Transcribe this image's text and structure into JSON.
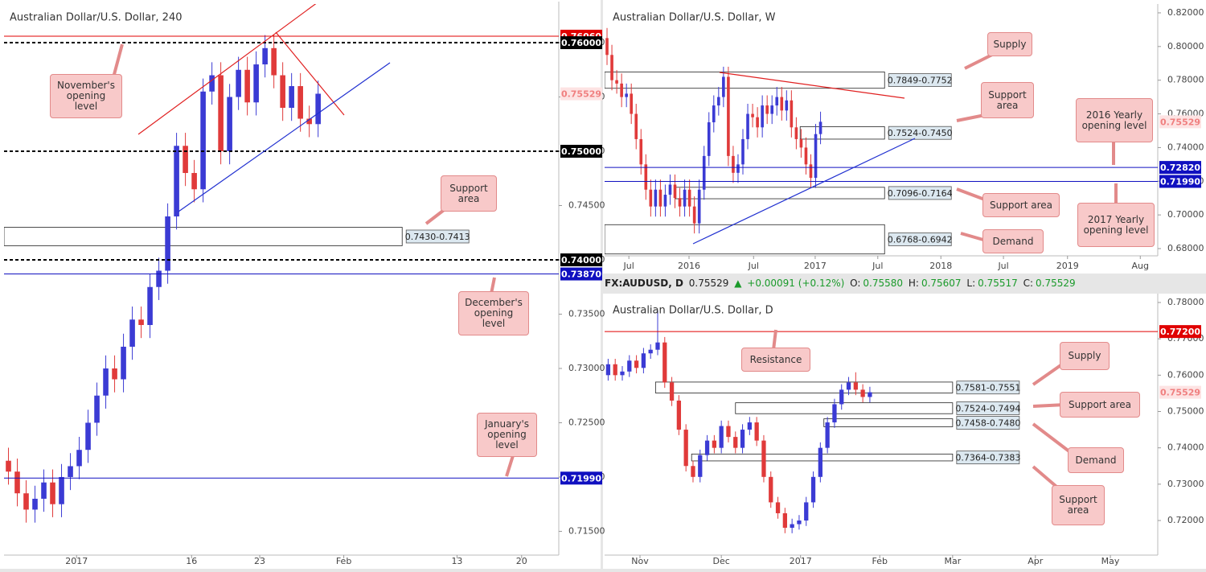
{
  "chart_data": [
    {
      "type": "candlestick",
      "title": "Australian Dollar/U.S. Dollar, 240",
      "up_color": "#3b3bd4",
      "down_color": "#e03a3a",
      "xlim": [
        0,
        62.7
      ],
      "ylim": [
        0.71281,
        0.76356
      ],
      "xticks": [
        {
          "value": 8.2,
          "label": "2017"
        },
        {
          "value": 21.2,
          "label": "16"
        },
        {
          "value": 28.9,
          "label": "23"
        },
        {
          "value": 38.4,
          "label": "Feb"
        },
        {
          "value": 51.2,
          "label": "13"
        },
        {
          "value": 58.5,
          "label": "20"
        }
      ],
      "yticks": [
        {
          "value": 0.715,
          "label": "0.71500"
        },
        {
          "value": 0.72,
          "label": "0.72000"
        },
        {
          "value": 0.725,
          "label": "0.72500"
        },
        {
          "value": 0.73,
          "label": "0.73000"
        },
        {
          "value": 0.735,
          "label": "0.73500"
        },
        {
          "value": 0.74,
          "label": "0.74000"
        },
        {
          "value": 0.745,
          "label": "0.74500"
        },
        {
          "value": 0.75,
          "label": "0.75000"
        },
        {
          "value": 0.755,
          "label": "0.75500"
        },
        {
          "value": 0.76,
          "label": "0.76000"
        }
      ],
      "candles": {
        "open": [
          0.7215,
          0.7205,
          0.7185,
          0.717,
          0.718,
          0.7195,
          0.7175,
          0.72,
          0.721,
          0.7225,
          0.725,
          0.7275,
          0.73,
          0.729,
          0.732,
          0.7345,
          0.734,
          0.7375,
          0.739,
          0.744,
          0.7505,
          0.748,
          0.7465,
          0.7555,
          0.757,
          0.75,
          0.755,
          0.7575,
          0.7545,
          0.758,
          0.7595,
          0.757,
          0.754,
          0.756,
          0.753,
          0.7525
        ],
        "high": [
          0.7227,
          0.7217,
          0.7197,
          0.7192,
          0.7207,
          0.7207,
          0.7212,
          0.7222,
          0.7237,
          0.7262,
          0.7287,
          0.7312,
          0.7312,
          0.7332,
          0.7357,
          0.7357,
          0.7387,
          0.7402,
          0.7452,
          0.7517,
          0.7517,
          0.7492,
          0.7567,
          0.7582,
          0.7582,
          0.7562,
          0.7587,
          0.7587,
          0.7592,
          0.7607,
          0.7607,
          0.7582,
          0.7572,
          0.7572,
          0.7542,
          0.7565
        ],
        "low": [
          0.7193,
          0.7173,
          0.7158,
          0.7158,
          0.7168,
          0.7163,
          0.7163,
          0.7188,
          0.7198,
          0.7213,
          0.7238,
          0.7263,
          0.7278,
          0.7278,
          0.7308,
          0.7328,
          0.7328,
          0.7363,
          0.7378,
          0.7428,
          0.7468,
          0.7453,
          0.7453,
          0.7543,
          0.7488,
          0.7488,
          0.7538,
          0.7533,
          0.7533,
          0.7568,
          0.7558,
          0.7528,
          0.7528,
          0.7518,
          0.7513,
          0.7513
        ],
        "close": [
          0.7205,
          0.7185,
          0.717,
          0.718,
          0.7195,
          0.7175,
          0.72,
          0.721,
          0.7225,
          0.725,
          0.7275,
          0.73,
          0.729,
          0.732,
          0.7345,
          0.734,
          0.7375,
          0.739,
          0.744,
          0.7505,
          0.748,
          0.7465,
          0.7555,
          0.757,
          0.75,
          0.755,
          0.7575,
          0.7545,
          0.758,
          0.7595,
          0.757,
          0.754,
          0.756,
          0.753,
          0.7525,
          0.7553
        ]
      },
      "levels": [
        {
          "value": 0.7606,
          "label": "0.76060",
          "color": "#e00000",
          "line": "solid"
        },
        {
          "value": 0.76,
          "label": "0.76000",
          "color": "#000000",
          "line": "dashed"
        },
        {
          "value": 0.75529,
          "label": "0.75529",
          "color": "#f08080",
          "line": "none"
        },
        {
          "value": 0.75,
          "label": "0.75000",
          "color": "#000000",
          "line": "dashed"
        },
        {
          "value": 0.74,
          "label": "0.74000",
          "color": "#000000",
          "line": "dashed"
        },
        {
          "value": 0.7387,
          "label": "0.73870",
          "color": "#1010c0",
          "line": "solid"
        },
        {
          "value": 0.7199,
          "label": "0.71990",
          "color": "#1010c0",
          "line": "solid"
        }
      ],
      "zones": [
        {
          "label": "0.7430-0.7413",
          "values": [
            0.743,
            0.7413
          ],
          "from": 0,
          "to": 45
        }
      ],
      "callouts": [
        "November's opening level",
        "Support area",
        "December's opening level",
        "January's opening level"
      ]
    },
    {
      "type": "candlestick",
      "title": "Australian Dollar/U.S. Dollar, W",
      "up_color": "#3b3bd4",
      "down_color": "#e03a3a",
      "xlim": [
        0,
        114
      ],
      "ylim": [
        0.6757,
        0.8238
      ],
      "xticks": [
        {
          "value": 5.0,
          "label": "Jul"
        },
        {
          "value": 17.4,
          "label": "2016"
        },
        {
          "value": 30.7,
          "label": "Jul"
        },
        {
          "value": 43.4,
          "label": "2017"
        },
        {
          "value": 56.3,
          "label": "Jul"
        },
        {
          "value": 69.3,
          "label": "2018"
        },
        {
          "value": 82.2,
          "label": "Jul"
        },
        {
          "value": 95.4,
          "label": "2019"
        },
        {
          "value": 110.4,
          "label": "Aug"
        }
      ],
      "yticks": [
        {
          "value": 0.68,
          "label": "0.68000"
        },
        {
          "value": 0.7,
          "label": "0.70000"
        },
        {
          "value": 0.72,
          "label": "0.72000"
        },
        {
          "value": 0.74,
          "label": "0.74000"
        },
        {
          "value": 0.76,
          "label": "0.76000"
        },
        {
          "value": 0.78,
          "label": "0.78000"
        },
        {
          "value": 0.8,
          "label": "0.80000"
        },
        {
          "value": 0.82,
          "label": "0.82000"
        }
      ],
      "candles": {
        "open": [
          0.805,
          0.795,
          0.78,
          0.778,
          0.77,
          0.772,
          0.76,
          0.745,
          0.73,
          0.715,
          0.705,
          0.715,
          0.705,
          0.712,
          0.718,
          0.71,
          0.705,
          0.715,
          0.705,
          0.695,
          0.715,
          0.735,
          0.755,
          0.765,
          0.77,
          0.782,
          0.735,
          0.725,
          0.73,
          0.745,
          0.76,
          0.758,
          0.752,
          0.765,
          0.76,
          0.765,
          0.77,
          0.762,
          0.768,
          0.752,
          0.745,
          0.74,
          0.73,
          0.722,
          0.748
        ],
        "high": [
          0.811,
          0.801,
          0.786,
          0.784,
          0.778,
          0.778,
          0.766,
          0.751,
          0.736,
          0.721,
          0.721,
          0.721,
          0.718,
          0.724,
          0.724,
          0.716,
          0.721,
          0.721,
          0.711,
          0.721,
          0.741,
          0.761,
          0.771,
          0.776,
          0.788,
          0.788,
          0.741,
          0.736,
          0.751,
          0.766,
          0.766,
          0.764,
          0.771,
          0.771,
          0.771,
          0.776,
          0.776,
          0.774,
          0.774,
          0.758,
          0.751,
          0.746,
          0.736,
          0.754,
          0.7613
        ],
        "low": [
          0.789,
          0.774,
          0.772,
          0.764,
          0.764,
          0.754,
          0.739,
          0.724,
          0.709,
          0.699,
          0.699,
          0.699,
          0.699,
          0.706,
          0.704,
          0.699,
          0.699,
          0.699,
          0.689,
          0.689,
          0.709,
          0.729,
          0.749,
          0.759,
          0.764,
          0.729,
          0.719,
          0.719,
          0.724,
          0.739,
          0.752,
          0.746,
          0.746,
          0.754,
          0.754,
          0.759,
          0.756,
          0.756,
          0.746,
          0.739,
          0.734,
          0.724,
          0.716,
          0.716,
          0.742
        ],
        "close": [
          0.795,
          0.78,
          0.778,
          0.77,
          0.772,
          0.76,
          0.745,
          0.73,
          0.715,
          0.705,
          0.715,
          0.705,
          0.712,
          0.718,
          0.71,
          0.705,
          0.715,
          0.705,
          0.695,
          0.715,
          0.735,
          0.755,
          0.765,
          0.77,
          0.782,
          0.735,
          0.725,
          0.73,
          0.745,
          0.76,
          0.758,
          0.752,
          0.765,
          0.76,
          0.765,
          0.77,
          0.762,
          0.768,
          0.752,
          0.745,
          0.74,
          0.73,
          0.722,
          0.748,
          0.7553
        ]
      },
      "levels": [
        {
          "value": 0.75529,
          "label": "0.75529",
          "color": "#f08080",
          "line": "none"
        },
        {
          "value": 0.7282,
          "label": "0.72820",
          "color": "#1010c0",
          "line": "solid"
        },
        {
          "value": 0.7199,
          "label": "0.71990",
          "color": "#1010c0",
          "line": "solid"
        }
      ],
      "zones": [
        {
          "label": "0.7849-0.7752",
          "values": [
            0.7849,
            0.7752
          ],
          "from": 0,
          "to": 57.7
        },
        {
          "label": "0.7524-0.7450",
          "values": [
            0.7524,
            0.745
          ],
          "from": 40.3,
          "to": 57.7
        },
        {
          "label": "0.7096-0.7164",
          "values": [
            0.7096,
            0.7164
          ],
          "from": 14.6,
          "to": 57.7
        },
        {
          "label": "0.6768-0.6942",
          "values": [
            0.6768,
            0.6942
          ],
          "from": 0,
          "to": 57.7
        }
      ],
      "callouts": [
        "Supply",
        "Support area",
        "Support area",
        "Demand",
        "2016 Yearly opening level",
        "2017 Yearly opening level"
      ]
    },
    {
      "type": "candlestick",
      "title": "Australian Dollar/U.S. Dollar, D",
      "up_color": "#3b3bd4",
      "down_color": "#e03a3a",
      "xlim": [
        0,
        78.2
      ],
      "ylim": [
        0.71048,
        0.78177
      ],
      "xticks": [
        {
          "value": 5.0,
          "label": "Nov"
        },
        {
          "value": 16.5,
          "label": "Dec"
        },
        {
          "value": 27.7,
          "label": "2017"
        },
        {
          "value": 38.9,
          "label": "Feb"
        },
        {
          "value": 49.2,
          "label": "Mar"
        },
        {
          "value": 60.9,
          "label": "Apr"
        },
        {
          "value": 71.5,
          "label": "May"
        }
      ],
      "yticks": [
        {
          "value": 0.72,
          "label": "0.72000"
        },
        {
          "value": 0.73,
          "label": "0.73000"
        },
        {
          "value": 0.74,
          "label": "0.74000"
        },
        {
          "value": 0.75,
          "label": "0.75000"
        },
        {
          "value": 0.76,
          "label": "0.76000"
        },
        {
          "value": 0.77,
          "label": "0.77000"
        },
        {
          "value": 0.78,
          "label": "0.78000"
        }
      ],
      "candles": {
        "open": [
          0.76,
          0.763,
          0.76,
          0.761,
          0.764,
          0.762,
          0.766,
          0.767,
          0.769,
          0.758,
          0.753,
          0.745,
          0.735,
          0.732,
          0.738,
          0.742,
          0.74,
          0.746,
          0.743,
          0.74,
          0.745,
          0.747,
          0.742,
          0.732,
          0.725,
          0.722,
          0.718,
          0.719,
          0.72,
          0.725,
          0.732,
          0.74,
          0.747,
          0.752,
          0.756,
          0.758,
          0.756,
          0.754
        ],
        "high": [
          0.7645,
          0.7645,
          0.7625,
          0.7655,
          0.7655,
          0.7675,
          0.7685,
          0.7778,
          0.7705,
          0.7595,
          0.7545,
          0.7465,
          0.7365,
          0.7395,
          0.7435,
          0.7435,
          0.7475,
          0.7475,
          0.7445,
          0.7465,
          0.7485,
          0.7485,
          0.7435,
          0.7335,
          0.7265,
          0.7235,
          0.7205,
          0.7215,
          0.7265,
          0.7335,
          0.7415,
          0.7485,
          0.7535,
          0.7575,
          0.7595,
          0.7608,
          0.7575,
          0.7568
        ],
        "low": [
          0.7585,
          0.7585,
          0.7585,
          0.7595,
          0.7605,
          0.7605,
          0.7645,
          0.7655,
          0.7565,
          0.7515,
          0.7435,
          0.7335,
          0.7305,
          0.7305,
          0.7365,
          0.7385,
          0.7385,
          0.7415,
          0.7385,
          0.7385,
          0.7435,
          0.7405,
          0.7305,
          0.7235,
          0.7205,
          0.7165,
          0.7165,
          0.7175,
          0.7185,
          0.7235,
          0.7305,
          0.7385,
          0.7455,
          0.7505,
          0.7545,
          0.7545,
          0.7525,
          0.7525
        ],
        "close": [
          0.763,
          0.76,
          0.761,
          0.764,
          0.762,
          0.766,
          0.767,
          0.769,
          0.758,
          0.753,
          0.745,
          0.735,
          0.732,
          0.738,
          0.742,
          0.74,
          0.746,
          0.743,
          0.74,
          0.745,
          0.747,
          0.742,
          0.732,
          0.725,
          0.722,
          0.718,
          0.719,
          0.72,
          0.725,
          0.732,
          0.74,
          0.747,
          0.752,
          0.756,
          0.758,
          0.756,
          0.754,
          0.7553
        ]
      },
      "levels": [
        {
          "value": 0.772,
          "label": "0.77200",
          "color": "#e00000",
          "line": "solid"
        },
        {
          "value": 0.75529,
          "label": "0.75529",
          "color": "#f08080",
          "line": "none"
        }
      ],
      "zones": [
        {
          "label": "0.7581-0.7551",
          "values": [
            0.7581,
            0.7551
          ],
          "from": 7.2,
          "to": 49.2
        },
        {
          "label": "0.7524-0.7494",
          "values": [
            0.7524,
            0.7494
          ],
          "from": 18.5,
          "to": 49.2
        },
        {
          "label": "0.7458-0.7480",
          "values": [
            0.7458,
            0.748
          ],
          "from": 31.0,
          "to": 49.2
        },
        {
          "label": "0.7364-0.7383",
          "values": [
            0.7364,
            0.7383
          ],
          "from": 12.3,
          "to": 49.2
        }
      ],
      "callouts": [
        "Resistance",
        "Supply",
        "Support area",
        "Demand",
        "Support area"
      ]
    }
  ],
  "quote": {
    "symbol": "FX:AUDUSD, D",
    "last": "0.75529",
    "change": "+0.00091 (+0.12%)",
    "open_label": "O:",
    "open": "0.75580",
    "high_label": "H:",
    "high": "0.75607",
    "low_label": "L:",
    "low": "0.75517",
    "close_label": "C:",
    "close": "0.75529"
  }
}
